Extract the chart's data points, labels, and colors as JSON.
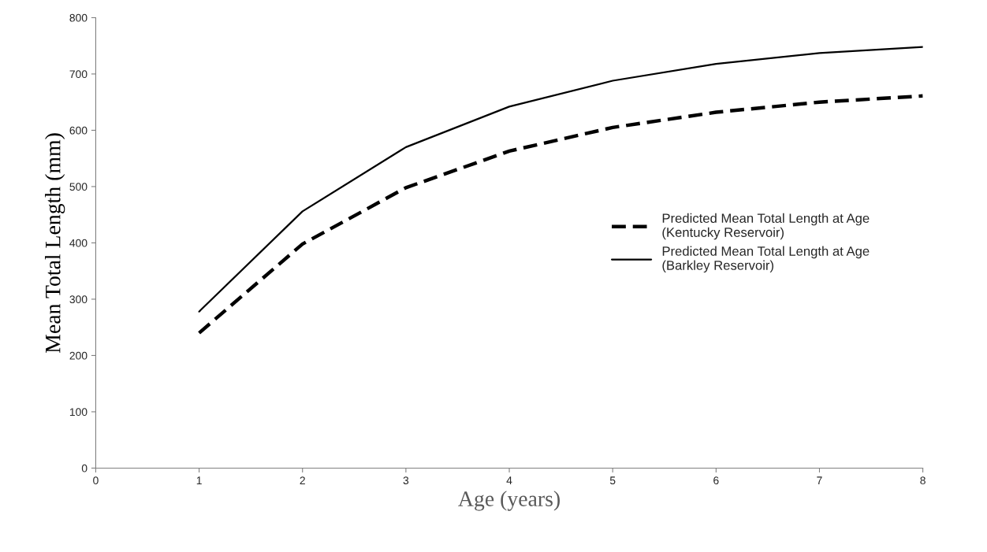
{
  "chart_data": {
    "type": "line",
    "xlabel": "Age (years)",
    "ylabel": "Mean Total Length (mm)",
    "x": [
      1,
      2,
      3,
      4,
      5,
      6,
      7,
      8
    ],
    "series": [
      {
        "name": "Predicted Mean Total Length at Age\n(Kentucky Reservoir)",
        "color": "#000000",
        "line_style": "dashed",
        "values": [
          240,
          398,
          498,
          563,
          605,
          632,
          650,
          661
        ]
      },
      {
        "name": "Predicted Mean Total Length at Age\n(Barkley Reservoir)",
        "color": "#000000",
        "line_style": "solid",
        "values": [
          278,
          456,
          570,
          642,
          688,
          718,
          737,
          748
        ]
      }
    ],
    "xlim": [
      0,
      8
    ],
    "xticks": [
      0,
      1,
      2,
      3,
      4,
      5,
      6,
      7,
      8
    ],
    "ylim": [
      0,
      800
    ],
    "yticks": [
      0,
      100,
      200,
      300,
      400,
      500,
      600,
      700,
      800
    ],
    "grid": false,
    "legend": "right",
    "marker": "none"
  }
}
